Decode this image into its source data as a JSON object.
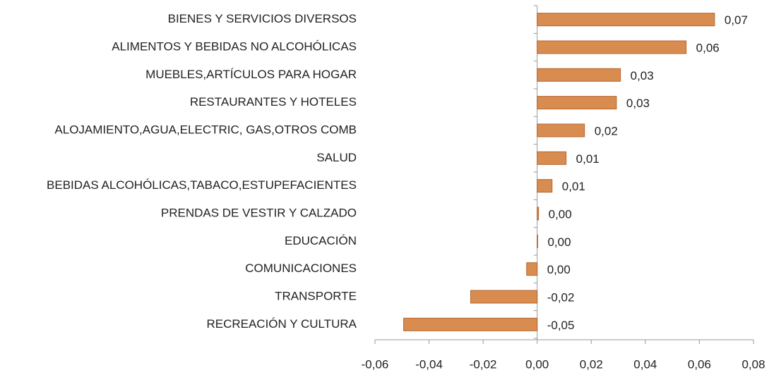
{
  "chart_data": {
    "type": "hbar",
    "categories": [
      "BIENES Y SERVICIOS DIVERSOS",
      "ALIMENTOS Y BEBIDAS NO ALCOHÓLICAS",
      "MUEBLES,ARTÍCULOS PARA HOGAR",
      "RESTAURANTES Y HOTELES",
      "ALOJAMIENTO,AGUA,ELECTRIC, GAS,OTROS COMB",
      "SALUD",
      "BEBIDAS ALCOHÓLICAS,TABACO,ESTUPEFACIENTES",
      "PRENDAS DE VESTIR Y CALZADO",
      "EDUCACIÓN",
      "COMUNICACIONES",
      "TRANSPORTE",
      "RECREACIÓN Y CULTURA"
    ],
    "values": [
      0.0656,
      0.0551,
      0.0308,
      0.0293,
      0.0175,
      0.0107,
      0.0055,
      0.0005,
      0.0002,
      -0.0039,
      -0.0246,
      -0.0494
    ],
    "value_labels": [
      "0,07",
      "0,06",
      "0,03",
      "0,03",
      "0,02",
      "0,01",
      "0,01",
      "0,00",
      "0,00",
      "0,00",
      "-0,02",
      "-0,05"
    ],
    "color": "#d98c50",
    "xlim": [
      -0.06,
      0.08
    ],
    "xticks": [
      {
        "value": -0.06,
        "label": "-0,06"
      },
      {
        "value": -0.04,
        "label": "-0,04"
      },
      {
        "value": -0.02,
        "label": "-0,02"
      },
      {
        "value": 0,
        "label": "0,00"
      },
      {
        "value": 0.02,
        "label": "0,02"
      },
      {
        "value": 0.04,
        "label": "0,04"
      },
      {
        "value": 0.06,
        "label": "0,06"
      },
      {
        "value": 0.08,
        "label": "0,08"
      }
    ]
  }
}
